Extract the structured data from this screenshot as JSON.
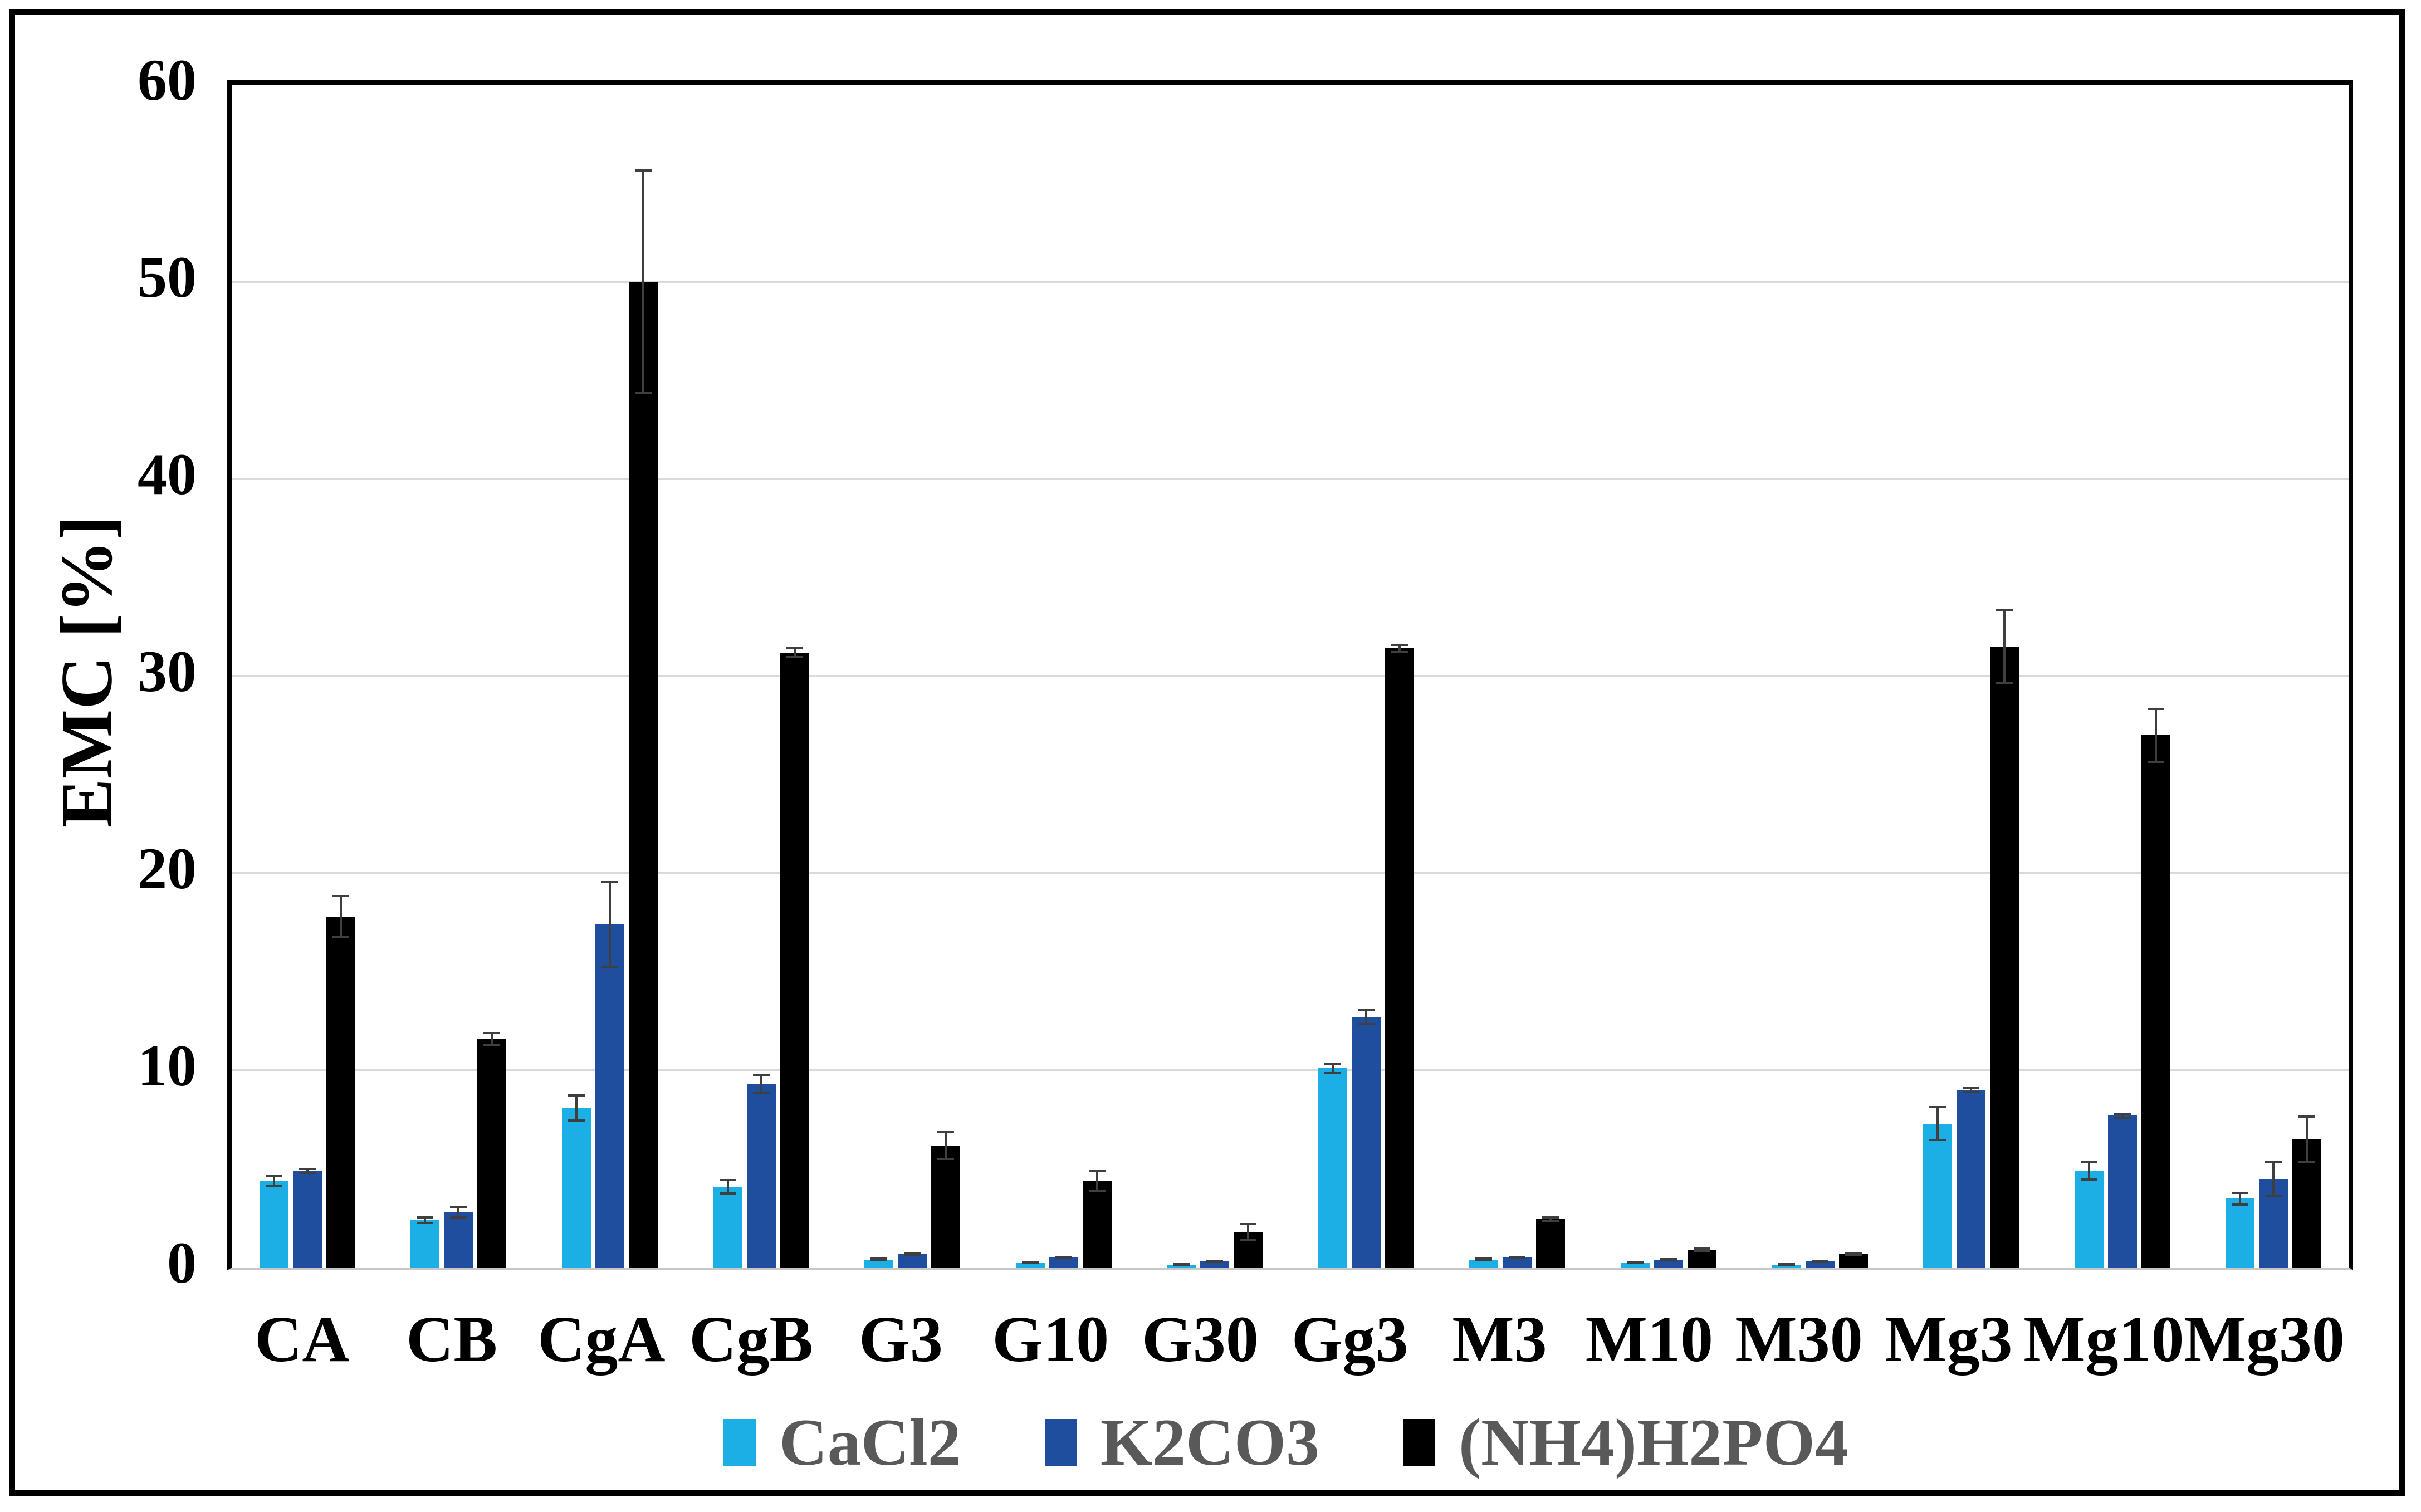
{
  "y_axis": {
    "title": "EMC [%]",
    "tick_labels": [
      "0",
      "10",
      "20",
      "30",
      "40",
      "50",
      "60"
    ],
    "min": 0,
    "max": 60
  },
  "legend": {
    "items": [
      {
        "label": "CaCl2",
        "color": "#1bafe6"
      },
      {
        "label": "K2CO3",
        "color": "#1f4e9e"
      },
      {
        "label": "(NH4)H2PO4",
        "color": "#000000"
      }
    ]
  },
  "chart_data": {
    "type": "bar",
    "title": "",
    "xlabel": "",
    "ylabel": "EMC [%]",
    "ylim": [
      0,
      60
    ],
    "ytick_step": 10,
    "grid": "horizontal-light-gray",
    "legend_position": "bottom",
    "error_bars": true,
    "categories": [
      "CA",
      "CB",
      "CgA",
      "CgB",
      "G3",
      "G10",
      "G30",
      "Gg3",
      "M3",
      "M10",
      "M30",
      "Mg3",
      "Mg10",
      "Mg30"
    ],
    "series": [
      {
        "name": "CaCl2",
        "color": "#1bafe6",
        "values": [
          4.4,
          2.4,
          8.1,
          4.1,
          0.4,
          0.25,
          0.15,
          10.1,
          0.4,
          0.25,
          0.15,
          7.3,
          4.9,
          3.5
        ],
        "errors": [
          0.3,
          0.2,
          0.7,
          0.4,
          0.1,
          0.08,
          0.05,
          0.3,
          0.1,
          0.08,
          0.05,
          0.9,
          0.5,
          0.35
        ]
      },
      {
        "name": "K2CO3",
        "color": "#1f4e9e",
        "values": [
          4.9,
          2.8,
          17.4,
          9.3,
          0.7,
          0.5,
          0.3,
          12.7,
          0.5,
          0.4,
          0.3,
          9.0,
          7.7,
          4.5
        ],
        "errors": [
          0.15,
          0.3,
          2.2,
          0.5,
          0.1,
          0.08,
          0.08,
          0.4,
          0.08,
          0.08,
          0.08,
          0.15,
          0.15,
          0.9
        ]
      },
      {
        "name": "(NH4)H2PO4",
        "color": "#000000",
        "values": [
          17.8,
          11.6,
          50.0,
          31.2,
          6.2,
          4.4,
          1.8,
          31.4,
          2.45,
          0.9,
          0.7,
          31.5,
          27.0,
          6.5
        ],
        "errors": [
          1.1,
          0.35,
          5.7,
          0.3,
          0.75,
          0.55,
          0.45,
          0.25,
          0.15,
          0.12,
          0.1,
          1.9,
          1.4,
          1.2
        ]
      }
    ]
  }
}
